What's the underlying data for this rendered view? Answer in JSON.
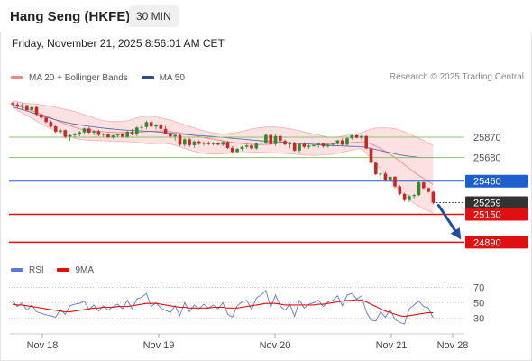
{
  "header": {
    "title": "Hang Seng (HKFE)",
    "timeframe": "30 MIN",
    "timestamp": "Friday, November 21, 2025 8:56:01 AM CET"
  },
  "legend_top": [
    {
      "label": "MA 20 + Bollinger Bands",
      "color": "#f08a8a"
    },
    {
      "label": "MA 50",
      "color": "#2a4d8f"
    }
  ],
  "credit": "Research © 2025 Trading Central",
  "legend_bottom": [
    {
      "label": "RSI",
      "color": "#5b7bd5"
    },
    {
      "label": "9MA",
      "color": "#e01010"
    }
  ],
  "chart_data": {
    "type": "line",
    "x_tick_labels": [
      "Nov 18",
      "Nov 19",
      "Nov 20",
      "Nov 21",
      "Nov 28"
    ],
    "price_ylim": [
      24750,
      26350
    ],
    "levels": [
      {
        "value": 25870,
        "label": "25870",
        "color": "#8cc26a",
        "style": "line",
        "badge": false
      },
      {
        "value": 25680,
        "label": "25680",
        "color": "#8cc26a",
        "style": "line",
        "badge": false
      },
      {
        "value": 25460,
        "label": "25460",
        "color": "#1e5fd0",
        "style": "line",
        "badge": true
      },
      {
        "value": 25259,
        "label": "25259",
        "color": "#333333",
        "style": "dotted",
        "badge": true
      },
      {
        "value": 25150,
        "label": "25150",
        "color": "#e01010",
        "style": "line",
        "badge": true
      },
      {
        "value": 24890,
        "label": "24890",
        "color": "#e01010",
        "style": "line",
        "badge": true
      }
    ],
    "candles": [
      [
        26187,
        26201,
        26157,
        26175
      ],
      [
        26175,
        26195,
        26142,
        26155
      ],
      [
        26155,
        26187,
        26130,
        26168
      ],
      [
        26168,
        26172,
        26110,
        26122
      ],
      [
        26122,
        26165,
        26105,
        26150
      ],
      [
        26150,
        26160,
        26070,
        26082
      ],
      [
        26082,
        26097,
        26040,
        26052
      ],
      [
        26052,
        26061,
        26000,
        26011
      ],
      [
        26011,
        26026,
        25960,
        25970
      ],
      [
        25970,
        25991,
        25910,
        25921
      ],
      [
        25921,
        25950,
        25895,
        25935
      ],
      [
        25935,
        25943,
        25860,
        25875
      ],
      [
        25875,
        25900,
        25835,
        25889
      ],
      [
        25889,
        25910,
        25868,
        25899
      ],
      [
        25899,
        25928,
        25878,
        25916
      ],
      [
        25916,
        25960,
        25898,
        25951
      ],
      [
        25951,
        25965,
        25903,
        25913
      ],
      [
        25913,
        25936,
        25888,
        25925
      ],
      [
        25925,
        25938,
        25879,
        25891
      ],
      [
        25891,
        25908,
        25873,
        25899
      ],
      [
        25899,
        25907,
        25860,
        25870
      ],
      [
        25870,
        25897,
        25855,
        25885
      ],
      [
        25885,
        25901,
        25870,
        25895
      ],
      [
        25895,
        25908,
        25866,
        25874
      ],
      [
        25874,
        25930,
        25862,
        25920
      ],
      [
        25920,
        25945,
        25885,
        25895
      ],
      [
        25895,
        25970,
        25880,
        25960
      ],
      [
        25960,
        25977,
        25939,
        25965
      ],
      [
        25965,
        26024,
        25945,
        26010
      ],
      [
        26010,
        26037,
        25956,
        25970
      ],
      [
        25970,
        25993,
        25944,
        25985
      ],
      [
        25985,
        26000,
        25935,
        25947
      ],
      [
        25947,
        25973,
        25893,
        25901
      ],
      [
        25901,
        25919,
        25865,
        25877
      ],
      [
        25877,
        25903,
        25840,
        25890
      ],
      [
        25890,
        25903,
        25786,
        25800
      ],
      [
        25800,
        25860,
        25783,
        25850
      ],
      [
        25850,
        25864,
        25780,
        25795
      ],
      [
        25795,
        25840,
        25772,
        25830
      ],
      [
        25830,
        25839,
        25797,
        25808
      ],
      [
        25808,
        25829,
        25790,
        25820
      ],
      [
        25820,
        25831,
        25795,
        25805
      ],
      [
        25805,
        25826,
        25793,
        25815
      ],
      [
        25815,
        25822,
        25792,
        25800
      ],
      [
        25800,
        25832,
        25787,
        25825
      ],
      [
        25825,
        25834,
        25759,
        25770
      ],
      [
        25770,
        25787,
        25720,
        25732
      ],
      [
        25732,
        25770,
        25718,
        25760
      ],
      [
        25760,
        25787,
        25743,
        25780
      ],
      [
        25780,
        25808,
        25762,
        25792
      ],
      [
        25792,
        25803,
        25754,
        25765
      ],
      [
        25765,
        25821,
        25752,
        25810
      ],
      [
        25810,
        25831,
        25793,
        25820
      ],
      [
        25820,
        25900,
        25808,
        25890
      ],
      [
        25890,
        25904,
        25793,
        25805
      ],
      [
        25805,
        25896,
        25788,
        25880
      ],
      [
        25880,
        25891,
        25824,
        25835
      ],
      [
        25835,
        25848,
        25792,
        25802
      ],
      [
        25802,
        25825,
        25768,
        25818
      ],
      [
        25818,
        25829,
        25736,
        25745
      ],
      [
        25745,
        25817,
        25727,
        25806
      ],
      [
        25806,
        25822,
        25766,
        25780
      ],
      [
        25780,
        25802,
        25761,
        25790
      ],
      [
        25790,
        25804,
        25778,
        25795
      ],
      [
        25795,
        25819,
        25771,
        25810
      ],
      [
        25810,
        25820,
        25772,
        25785
      ],
      [
        25785,
        25810,
        25772,
        25800
      ],
      [
        25800,
        25818,
        25784,
        25808
      ],
      [
        25808,
        25846,
        25799,
        25840
      ],
      [
        25840,
        25858,
        25789,
        25800
      ],
      [
        25800,
        25869,
        25787,
        25860
      ],
      [
        25860,
        25895,
        25847,
        25887
      ],
      [
        25887,
        25896,
        25859,
        25865
      ],
      [
        25865,
        25888,
        25847,
        25880
      ],
      [
        25880,
        25887,
        25756,
        25765
      ],
      [
        25765,
        25780,
        25615,
        25630
      ],
      [
        25630,
        25643,
        25515,
        25525
      ],
      [
        25525,
        25543,
        25480,
        25530
      ],
      [
        25530,
        25547,
        25456,
        25470
      ],
      [
        25470,
        25510,
        25458,
        25500
      ],
      [
        25500,
        25508,
        25392,
        25410
      ],
      [
        25410,
        25425,
        25327,
        25340
      ],
      [
        25340,
        25351,
        25270,
        25283
      ],
      [
        25283,
        25332,
        25264,
        25320
      ],
      [
        25320,
        25339,
        25297,
        25330
      ],
      [
        25330,
        25460,
        25320,
        25448
      ],
      [
        25448,
        25456,
        25384,
        25395
      ],
      [
        25395,
        25402,
        25352,
        25360
      ],
      [
        25360,
        25369,
        25245,
        25259
      ]
    ],
    "bollinger": {
      "mid": [
        26170,
        26160,
        26148,
        26132,
        26118,
        26102,
        26085,
        26068,
        26050,
        26030,
        26010,
        25995,
        25978,
        25962,
        25948,
        25938,
        25932,
        25928,
        25924,
        25920,
        25917,
        25914,
        25913,
        25912,
        25912,
        25913,
        25915,
        25918,
        25922,
        25925,
        25927,
        25928,
        25926,
        25922,
        25917,
        25910,
        25902,
        25894,
        25885,
        25876,
        25867,
        25859,
        25851,
        25843,
        25836,
        25829,
        25822,
        25815,
        25810,
        25806,
        25803,
        25801,
        25800,
        25803,
        25805,
        25810,
        25815,
        25818,
        25818,
        25816,
        25812,
        25808,
        25805,
        25803,
        25803,
        25805,
        25806,
        25808,
        25810,
        25812,
        25815,
        25820,
        25823,
        25826,
        25822,
        25808,
        25788,
        25762,
        25736,
        25708,
        25680,
        25648,
        25612,
        25578,
        25545,
        25515,
        25485,
        25455,
        25428
      ],
      "upper": [
        26210,
        26200,
        26190,
        26185,
        26182,
        26178,
        26172,
        26165,
        26160,
        26150,
        26138,
        26130,
        26120,
        26110,
        26095,
        26080,
        26065,
        26050,
        26035,
        26025,
        26018,
        26015,
        26015,
        26018,
        26025,
        26035,
        26050,
        26060,
        26065,
        26065,
        26060,
        26050,
        26040,
        26030,
        26015,
        26000,
        25985,
        25970,
        25955,
        25942,
        25930,
        25920,
        25910,
        25905,
        25900,
        25902,
        25908,
        25915,
        25925,
        25935,
        25945,
        25955,
        25960,
        25965,
        25965,
        25965,
        25962,
        25955,
        25948,
        25940,
        25930,
        25920,
        25910,
        25900,
        25890,
        25880,
        25872,
        25870,
        25872,
        25880,
        25888,
        25895,
        25900,
        25910,
        25930,
        25945,
        25955,
        25958,
        25958,
        25955,
        25948,
        25935,
        25920,
        25900,
        25880,
        25860,
        25840,
        25815,
        25790
      ],
      "lower": [
        26150,
        26120,
        26098,
        26072,
        26048,
        26020,
        25995,
        25972,
        25950,
        25930,
        25910,
        25890,
        25875,
        25860,
        25850,
        25845,
        25842,
        25840,
        25838,
        25836,
        25835,
        25833,
        25831,
        25830,
        25828,
        25825,
        25820,
        25815,
        25810,
        25808,
        25810,
        25812,
        25810,
        25805,
        25795,
        25780,
        25765,
        25750,
        25738,
        25728,
        25720,
        25715,
        25712,
        25712,
        25715,
        25720,
        25720,
        25720,
        25722,
        25725,
        25728,
        25730,
        25730,
        25728,
        25725,
        25722,
        25720,
        25718,
        25715,
        25712,
        25708,
        25705,
        25702,
        25700,
        25702,
        25705,
        25708,
        25712,
        25720,
        25730,
        25740,
        25750,
        25760,
        25765,
        25720,
        25670,
        25620,
        25570,
        25520,
        25470,
        25420,
        25375,
        25330,
        25290,
        25255,
        25225,
        25200,
        25180,
        25165
      ]
    },
    "ma50": [
      26150,
      26140,
      26128,
      26115,
      26100,
      26085,
      26070,
      26058,
      26045,
      26032,
      26020,
      26010,
      26000,
      25992,
      25985,
      25978,
      25972,
      25966,
      25960,
      25955,
      25950,
      25946,
      25942,
      25938,
      25935,
      25932,
      25930,
      25928,
      25926,
      25924,
      25920,
      25916,
      25912,
      25908,
      25904,
      25900,
      25896,
      25892,
      25888,
      25885,
      25882,
      25879,
      25876,
      25872,
      25868,
      25864,
      25860,
      25856,
      25852,
      25848,
      25844,
      25840,
      25836,
      25833,
      25830,
      25827,
      25824,
      25821,
      25818,
      25815,
      25812,
      25809,
      25806,
      25803,
      25800,
      25797,
      25794,
      25792,
      25790,
      25788,
      25786,
      25784,
      25783,
      25782,
      25775,
      25765,
      25755,
      25745,
      25735,
      25725,
      25715,
      25705,
      25698,
      25692,
      25687,
      25682,
      25680,
      25680,
      25680
    ],
    "rsi_ylim": [
      15,
      80
    ],
    "rsi_ticks": [
      70,
      50,
      30
    ],
    "rsi": [
      52,
      45,
      50,
      40,
      47,
      38,
      36,
      34,
      33,
      31,
      41,
      35,
      46,
      48,
      49,
      52,
      41,
      47,
      39,
      46,
      40,
      45,
      48,
      42,
      53,
      42,
      55,
      57,
      62,
      45,
      50,
      43,
      40,
      37,
      46,
      33,
      50,
      38,
      47,
      42,
      48,
      43,
      47,
      42,
      50,
      35,
      31,
      46,
      51,
      53,
      41,
      56,
      60,
      66,
      44,
      60,
      46,
      40,
      48,
      32,
      53,
      43,
      48,
      50,
      53,
      45,
      51,
      53,
      59,
      46,
      60,
      62,
      55,
      59,
      38,
      27,
      26,
      38,
      31,
      41,
      28,
      24,
      22,
      42,
      47,
      52,
      45,
      43,
      30
    ],
    "rsi_ma": [
      48,
      47,
      47,
      46,
      45,
      44,
      43,
      42,
      41,
      40,
      39,
      38,
      38,
      39,
      40,
      41,
      42,
      43,
      43,
      44,
      44,
      44,
      45,
      45,
      45,
      46,
      47,
      48,
      49,
      49,
      49,
      48,
      47,
      46,
      45,
      44,
      44,
      43,
      43,
      43,
      43,
      43,
      44,
      44,
      44,
      43,
      43,
      43,
      44,
      45,
      46,
      47,
      48,
      49,
      49,
      49,
      48,
      47,
      47,
      47,
      47,
      47,
      47,
      47,
      48,
      48,
      49,
      50,
      51,
      52,
      53,
      53,
      54,
      53,
      51,
      48,
      45,
      42,
      39,
      37,
      35,
      33,
      32,
      33,
      34,
      35,
      36,
      37,
      37
    ]
  }
}
